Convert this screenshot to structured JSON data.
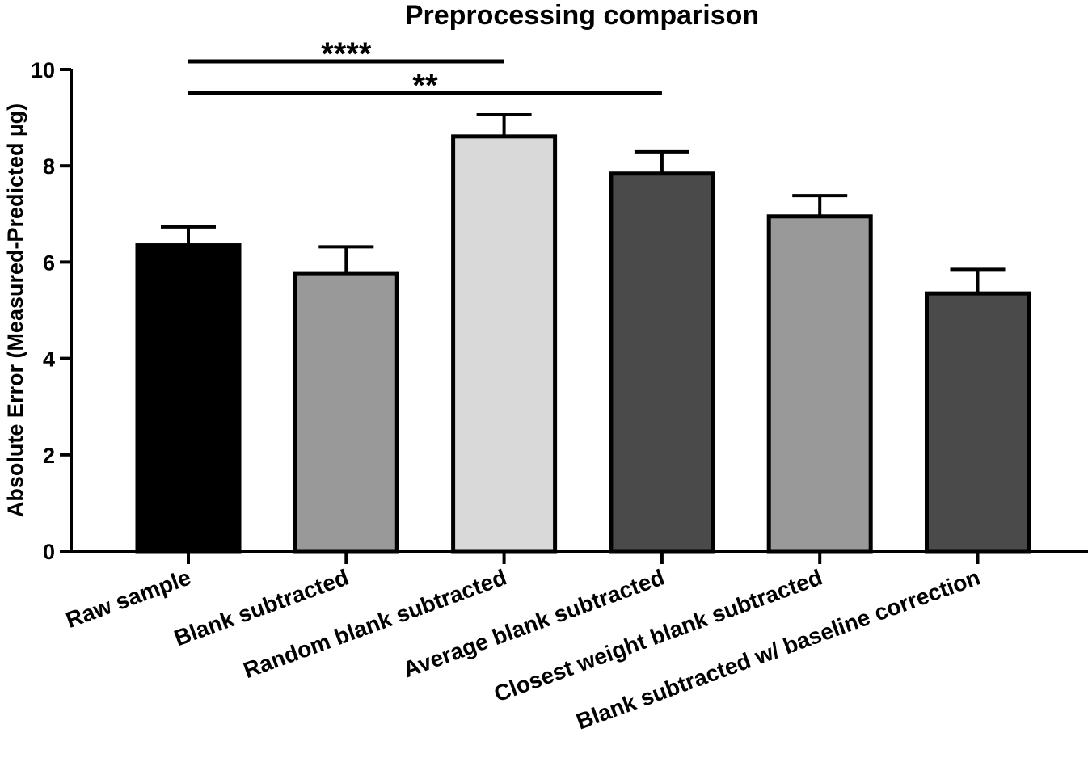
{
  "chart_data": {
    "type": "bar",
    "title": "Preprocessing comparison",
    "y_label": "Absolute  Error (Measured-Predicted µg)",
    "categories": [
      "Raw sample",
      "Blank subtracted",
      "Random blank subtracted",
      "Average blank subtracted",
      "Closest weight blank subtracted",
      "Blank subtracted w/ baseline correction"
    ],
    "values": [
      6.35,
      5.77,
      8.61,
      7.84,
      6.95,
      5.35
    ],
    "errors": [
      0.38,
      0.55,
      0.45,
      0.45,
      0.43,
      0.5
    ],
    "colors": [
      "#000000",
      "#999999",
      "#d9d9d9",
      "#4a4a4a",
      "#999999",
      "#4a4a4a"
    ],
    "ylim": [
      0,
      10
    ],
    "yticks": [
      0,
      2,
      4,
      6,
      8,
      10
    ],
    "comparisons": [
      {
        "groups": [
          0,
          2
        ],
        "label": "****"
      },
      {
        "groups": [
          0,
          3
        ],
        "label": "**"
      }
    ]
  }
}
